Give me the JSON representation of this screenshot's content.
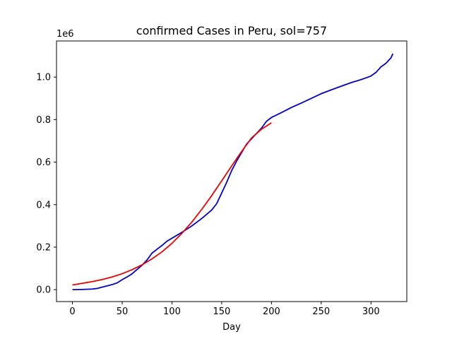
{
  "chart_data": {
    "type": "line",
    "title": "confirmed Cases in Peru, sol=757",
    "xlabel": "Day",
    "ylabel": "",
    "y_offset_text": "1e6",
    "xlim": [
      -16,
      336
    ],
    "ylim": [
      -0.056,
      1.17
    ],
    "x_ticks": [
      0,
      50,
      100,
      150,
      200,
      250,
      300
    ],
    "y_ticks": [
      0.0,
      0.2,
      0.4,
      0.6,
      0.8,
      1.0
    ],
    "y_tick_labels": [
      "0.0",
      "0.2",
      "0.4",
      "0.6",
      "0.8",
      "1.0"
    ],
    "grid": false,
    "series": [
      {
        "color": "#0000cc",
        "x": [
          0,
          10,
          20,
          25,
          30,
          35,
          40,
          45,
          50,
          55,
          60,
          65,
          70,
          75,
          80,
          85,
          90,
          95,
          100,
          110,
          120,
          130,
          140,
          145,
          150,
          155,
          160,
          165,
          170,
          175,
          180,
          185,
          190,
          195,
          200,
          210,
          220,
          230,
          240,
          250,
          260,
          270,
          280,
          290,
          300,
          305,
          310,
          315,
          320,
          322
        ],
        "y": [
          0.0,
          0.001,
          0.003,
          0.006,
          0.012,
          0.018,
          0.024,
          0.032,
          0.047,
          0.06,
          0.075,
          0.095,
          0.115,
          0.14,
          0.172,
          0.19,
          0.208,
          0.228,
          0.242,
          0.27,
          0.3,
          0.335,
          0.375,
          0.405,
          0.455,
          0.505,
          0.56,
          0.605,
          0.645,
          0.685,
          0.71,
          0.735,
          0.76,
          0.792,
          0.81,
          0.833,
          0.857,
          0.878,
          0.9,
          0.922,
          0.94,
          0.957,
          0.974,
          0.988,
          1.005,
          1.022,
          1.048,
          1.065,
          1.09,
          1.11
        ]
      },
      {
        "color": "#ee0000",
        "x": [
          0,
          10,
          20,
          30,
          40,
          50,
          60,
          70,
          80,
          90,
          100,
          110,
          120,
          130,
          140,
          150,
          160,
          170,
          180,
          190,
          200
        ],
        "y": [
          0.022,
          0.03,
          0.038,
          0.048,
          0.06,
          0.075,
          0.094,
          0.117,
          0.145,
          0.178,
          0.218,
          0.265,
          0.318,
          0.378,
          0.443,
          0.512,
          0.582,
          0.65,
          0.714,
          0.755,
          0.785
        ]
      }
    ]
  }
}
